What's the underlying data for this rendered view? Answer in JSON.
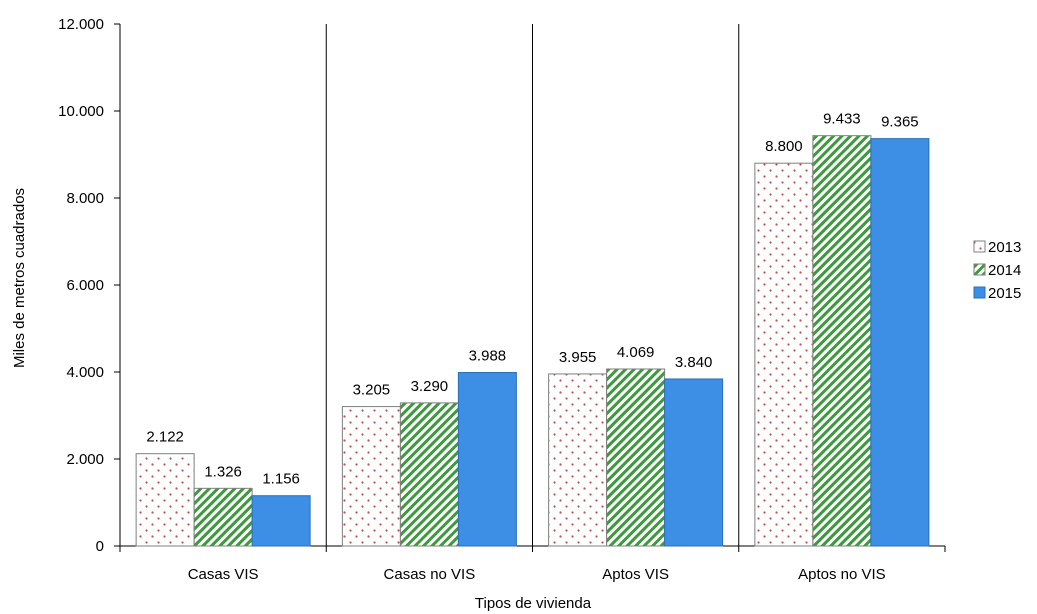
{
  "chart_data": {
    "type": "bar",
    "categories": [
      "Casas VIS",
      "Casas no VIS",
      "Aptos VIS",
      "Aptos no VIS"
    ],
    "series": [
      {
        "name": "2013",
        "values": [
          2122,
          3205,
          3955,
          8800
        ],
        "labels": [
          "2.122",
          "3.205",
          "3.955",
          "8.800"
        ]
      },
      {
        "name": "2014",
        "values": [
          1326,
          3290,
          4069,
          9433
        ],
        "labels": [
          "1.326",
          "3.290",
          "4.069",
          "9.433"
        ]
      },
      {
        "name": "2015",
        "values": [
          1156,
          3988,
          3840,
          9365
        ],
        "labels": [
          "1.156",
          "3.988",
          "3.840",
          "9.365"
        ]
      }
    ],
    "title": "",
    "xlabel": "Tipos de vivienda",
    "ylabel": "Miles de metros cuadrados",
    "ylim": [
      0,
      12000
    ],
    "yticks": [
      0,
      2000,
      4000,
      6000,
      8000,
      10000,
      12000
    ],
    "ytick_labels": [
      "0",
      "2.000",
      "4.000",
      "6.000",
      "8.000",
      "10.000",
      "12.000"
    ],
    "grid": false,
    "category_separators": true,
    "legend_position": "right",
    "colors": {
      "2013": "#ffffff",
      "2014": "#3c9a3c",
      "2015": "#3d8fe6",
      "dots_2013": "#c0504d"
    }
  }
}
